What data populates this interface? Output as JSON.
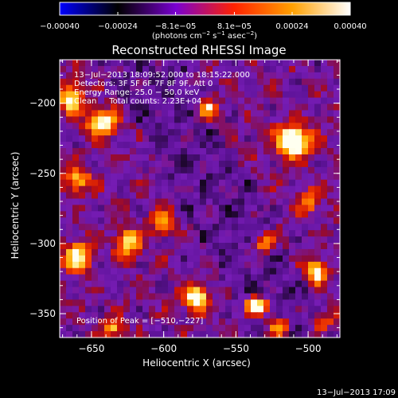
{
  "chart_data": {
    "type": "heatmap",
    "title": "Reconstructed RHESSI Image",
    "xlabel": "Heliocentric X (arcsec)",
    "ylabel": "Heliocentric Y (arcsec)",
    "xlim": [
      -672,
      -478
    ],
    "ylim": [
      -367,
      -169
    ],
    "x_ticks": [
      {
        "value": -650,
        "label": "−650"
      },
      {
        "value": -600,
        "label": "−600"
      },
      {
        "value": -550,
        "label": "−550"
      },
      {
        "value": -500,
        "label": "−500"
      }
    ],
    "y_ticks": [
      {
        "value": -200,
        "label": "−200"
      },
      {
        "value": -250,
        "label": "−250"
      },
      {
        "value": -300,
        "label": "−300"
      },
      {
        "value": -350,
        "label": "−350"
      }
    ],
    "colorbar": {
      "range": [
        -0.0004,
        0.0004
      ],
      "ticks": [
        {
          "value": -0.0004,
          "label": "−0.00040"
        },
        {
          "value": -0.00024,
          "label": "−0.00024"
        },
        {
          "value": -8.1e-05,
          "label": "−8.1e−05"
        },
        {
          "value": 8.1e-05,
          "label": "8.1e−05"
        },
        {
          "value": 0.00024,
          "label": "0.00024"
        },
        {
          "value": 0.0004,
          "label": "0.00040"
        }
      ],
      "unit_parts": [
        "(photons cm",
        "−2",
        " s",
        "−1",
        " asec",
        "−2",
        ")"
      ],
      "colors": [
        "#0000ff",
        "#000000",
        "#7a00d0",
        "#ff2200",
        "#ffa000",
        "#ffffff"
      ]
    },
    "annotations": [
      "13−Jul−2013 18:09:52.000 to 18:15:22.000",
      "Detectors: 3F 5F 6F 7F 8F 9F, Att 0",
      "Energy Range: 25.0 − 50.0 keV",
      "Clean     Total counts: 2.23E+04"
    ],
    "peak_label": "Position of Peak = [−510,−227]",
    "peak": [
      -510,
      -227
    ],
    "sources": [
      {
        "x": -510,
        "y": -227,
        "sx": 8,
        "sy": 8,
        "a": 1.0
      },
      {
        "x": -642,
        "y": -214,
        "sx": 7,
        "sy": 6,
        "a": 0.88
      },
      {
        "x": -664,
        "y": -196,
        "sx": 6,
        "sy": 8,
        "a": 0.7
      },
      {
        "x": -535,
        "y": -345,
        "sx": 6,
        "sy": 5,
        "a": 0.9
      },
      {
        "x": -578,
        "y": -339,
        "sx": 6,
        "sy": 6,
        "a": 0.9
      },
      {
        "x": -494,
        "y": -320,
        "sx": 5,
        "sy": 6,
        "a": 0.78
      },
      {
        "x": -660,
        "y": -310,
        "sx": 7,
        "sy": 8,
        "a": 0.72
      },
      {
        "x": -635,
        "y": -360,
        "sx": 5,
        "sy": 5,
        "a": 0.55
      },
      {
        "x": -625,
        "y": -300,
        "sx": 6,
        "sy": 7,
        "a": 0.68
      },
      {
        "x": -570,
        "y": -205,
        "sx": 5,
        "sy": 6,
        "a": 0.6
      },
      {
        "x": -530,
        "y": -300,
        "sx": 6,
        "sy": 5,
        "a": 0.58
      },
      {
        "x": -600,
        "y": -285,
        "sx": 6,
        "sy": 6,
        "a": 0.55
      },
      {
        "x": -660,
        "y": -255,
        "sx": 7,
        "sy": 6,
        "a": 0.55
      },
      {
        "x": -500,
        "y": -270,
        "sx": 5,
        "sy": 6,
        "a": 0.5
      },
      {
        "x": -520,
        "y": -360,
        "sx": 5,
        "sy": 5,
        "a": 0.6
      },
      {
        "x": -490,
        "y": -355,
        "sx": 5,
        "sy": 5,
        "a": 0.5
      }
    ],
    "grid": false
  },
  "timestamp": "13−Jul−2013 17:09"
}
